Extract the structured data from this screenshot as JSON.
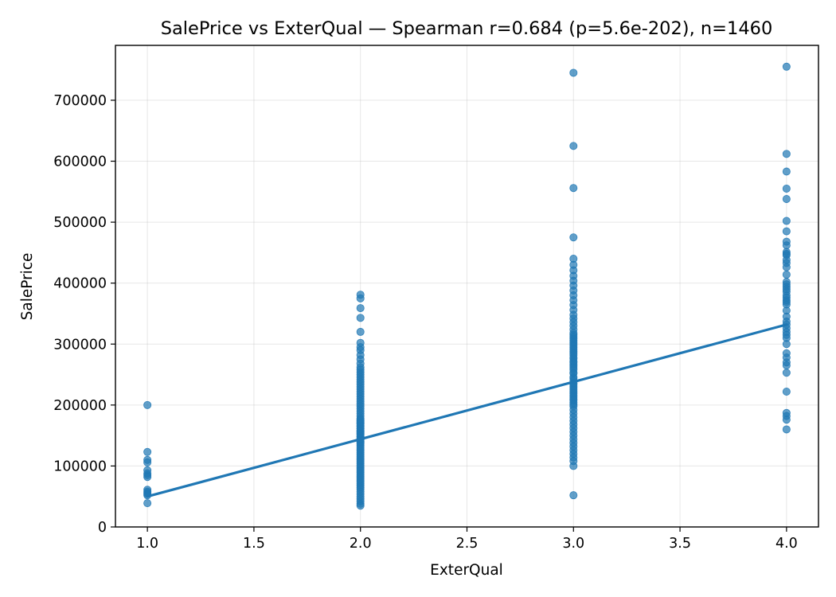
{
  "chart_data": {
    "type": "scatter",
    "title": "SalePrice vs ExterQual — Spearman r=0.684 (p=5.6e-202), n=1460",
    "xlabel": "ExterQual",
    "ylabel": "SalePrice",
    "xlim": [
      0.85,
      4.15
    ],
    "ylim": [
      0,
      790000
    ],
    "x_ticks": [
      "1.0",
      "1.5",
      "2.0",
      "2.5",
      "3.0",
      "3.5",
      "4.0"
    ],
    "x_tick_values": [
      1.0,
      1.5,
      2.0,
      2.5,
      3.0,
      3.5,
      4.0
    ],
    "y_ticks": [
      "0",
      "100000",
      "200000",
      "300000",
      "400000",
      "500000",
      "600000",
      "700000"
    ],
    "y_tick_values": [
      0,
      100000,
      200000,
      300000,
      400000,
      500000,
      600000,
      700000
    ],
    "grid": true,
    "colors": {
      "points": "#1f77b4",
      "trend": "#1f77b4"
    },
    "series": [
      {
        "x": [
          1,
          1,
          1,
          1,
          1,
          1,
          1,
          1,
          1,
          1,
          1,
          1,
          1,
          1
        ],
        "y": [
          200000,
          123000,
          110000,
          106000,
          93000,
          85000,
          82000,
          61000,
          58000,
          56000,
          52000,
          39000,
          88000,
          54000
        ]
      },
      {
        "x": [
          2,
          2,
          2,
          2,
          2,
          2,
          2,
          2,
          2,
          2,
          2,
          2,
          2,
          2,
          2,
          2,
          2,
          2,
          2,
          2,
          2,
          2,
          2,
          2,
          2,
          2,
          2,
          2,
          2,
          2,
          2,
          2,
          2,
          2,
          2,
          2,
          2,
          2,
          2,
          2,
          2,
          2,
          2,
          2,
          2,
          2,
          2,
          2,
          2,
          2,
          2,
          2,
          2,
          2,
          2,
          2,
          2,
          2,
          2,
          2,
          2,
          2,
          2,
          2,
          2,
          2,
          2,
          2,
          2,
          2,
          2,
          2,
          2,
          2,
          2,
          2,
          2,
          2,
          2,
          2,
          2,
          2,
          2,
          2,
          2,
          2,
          2
        ],
        "y": [
          381000,
          375000,
          359000,
          343000,
          320000,
          302000,
          295000,
          290000,
          282000,
          275000,
          268000,
          262000,
          258000,
          254000,
          250000,
          246000,
          242000,
          238000,
          234000,
          230000,
          226000,
          222000,
          218000,
          214000,
          210000,
          206000,
          202000,
          198000,
          194000,
          190000,
          186000,
          182000,
          178000,
          174000,
          170000,
          166000,
          162000,
          158000,
          155000,
          152000,
          149000,
          146000,
          143000,
          140000,
          137000,
          134000,
          131000,
          128000,
          125000,
          122000,
          119000,
          116000,
          113000,
          110000,
          107000,
          104000,
          101000,
          98000,
          95000,
          92000,
          89000,
          86000,
          83000,
          80000,
          77000,
          74000,
          71000,
          68000,
          65000,
          62000,
          58000,
          54000,
          50000,
          46000,
          42000,
          38000,
          35000,
          139000,
          144000,
          148000,
          153000,
          157000,
          161000,
          165000,
          169000,
          172000,
          176000
        ]
      },
      {
        "x": [
          3,
          3,
          3,
          3,
          3,
          3,
          3,
          3,
          3,
          3,
          3,
          3,
          3,
          3,
          3,
          3,
          3,
          3,
          3,
          3,
          3,
          3,
          3,
          3,
          3,
          3,
          3,
          3,
          3,
          3,
          3,
          3,
          3,
          3,
          3,
          3,
          3,
          3,
          3,
          3,
          3,
          3,
          3,
          3,
          3,
          3,
          3,
          3,
          3,
          3,
          3,
          3,
          3,
          3,
          3,
          3,
          3,
          3,
          3,
          3,
          3,
          3,
          3,
          3,
          3,
          3,
          3,
          3,
          3,
          3,
          3,
          3,
          3,
          3,
          3,
          3,
          3
        ],
        "y": [
          745000,
          625000,
          556000,
          475000,
          440000,
          430000,
          421000,
          412000,
          404000,
          396000,
          388000,
          380000,
          372000,
          364000,
          356000,
          348000,
          342000,
          336000,
          330000,
          324000,
          318000,
          312000,
          306000,
          300000,
          294000,
          288000,
          282000,
          276000,
          270000,
          264000,
          258000,
          252000,
          246000,
          240000,
          234000,
          228000,
          222000,
          216000,
          210000,
          204000,
          198000,
          192000,
          186000,
          180000,
          174000,
          168000,
          162000,
          156000,
          150000,
          144000,
          138000,
          132000,
          126000,
          120000,
          114000,
          108000,
          100000,
          52000,
          236000,
          244000,
          253000,
          261000,
          267000,
          272000,
          278000,
          285000,
          291000,
          297000,
          303000,
          309000,
          315000,
          201000,
          208000,
          213000,
          219000,
          225000,
          231000
        ]
      },
      {
        "x": [
          4,
          4,
          4,
          4,
          4,
          4,
          4,
          4,
          4,
          4,
          4,
          4,
          4,
          4,
          4,
          4,
          4,
          4,
          4,
          4,
          4,
          4,
          4,
          4,
          4,
          4,
          4,
          4,
          4,
          4,
          4,
          4,
          4,
          4,
          4,
          4,
          4,
          4,
          4,
          4,
          4,
          4,
          4,
          4,
          4
        ],
        "y": [
          755000,
          612000,
          583000,
          555000,
          538000,
          502000,
          485000,
          468000,
          462000,
          451000,
          446000,
          438000,
          426000,
          414000,
          402000,
          394000,
          386000,
          380000,
          372000,
          365000,
          345000,
          337000,
          332000,
          320000,
          315000,
          310000,
          300000,
          278000,
          270000,
          265000,
          253000,
          222000,
          187000,
          182000,
          176000,
          160000,
          398000,
          390000,
          376000,
          369000,
          355000,
          326000,
          285000,
          448000,
          433000
        ]
      }
    ],
    "trendline": {
      "x": [
        1,
        4
      ],
      "y": [
        50000,
        332000
      ]
    }
  }
}
